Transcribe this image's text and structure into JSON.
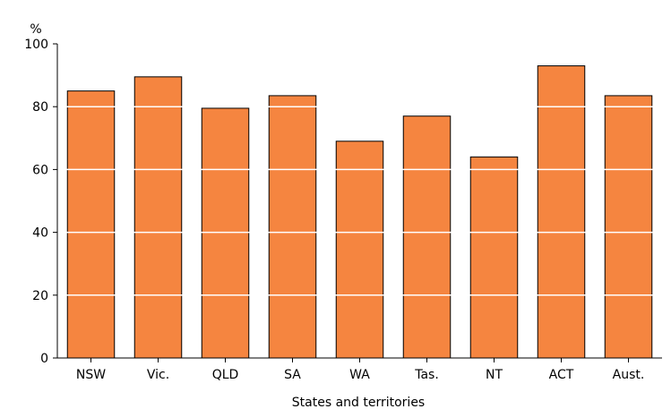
{
  "chart_data": {
    "type": "bar",
    "categories": [
      "NSW",
      "Vic.",
      "QLD",
      "SA",
      "WA",
      "Tas.",
      "NT",
      "ACT",
      "Aust."
    ],
    "values": [
      85,
      89.5,
      79.5,
      83.5,
      69,
      77,
      64,
      93,
      83.5
    ],
    "title": "",
    "xlabel": "States and territories",
    "ylabel": "%",
    "ylim": [
      0,
      100
    ],
    "yticks": [
      0,
      20,
      40,
      60,
      80,
      100
    ],
    "grid": true,
    "bar_color": "#f58540",
    "bar_edge_color": "#000000",
    "grid_color": "#ffffff"
  }
}
